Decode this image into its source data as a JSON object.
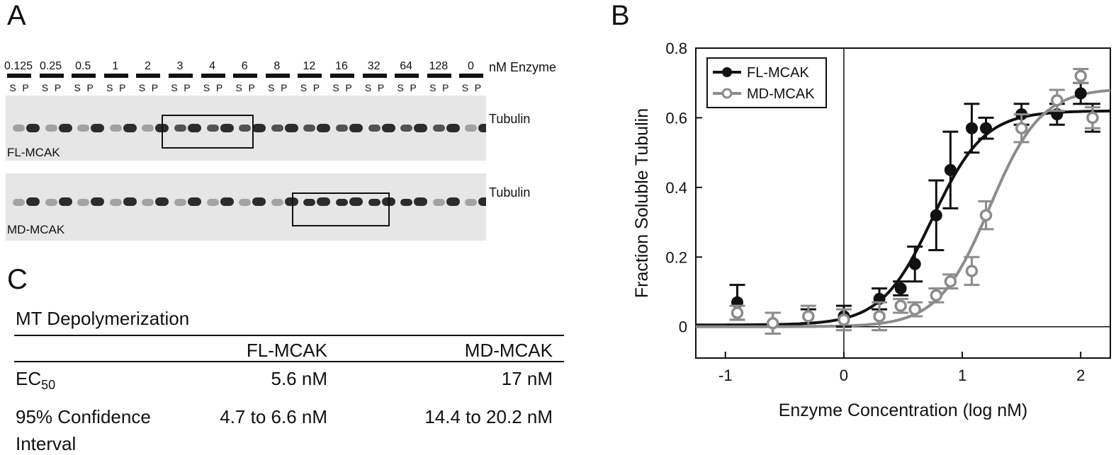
{
  "panels": {
    "a": "A",
    "b": "B",
    "c": "C"
  },
  "gel": {
    "concentrations": [
      "0.125",
      "0.25",
      "0.5",
      "1",
      "2",
      "3",
      "4",
      "6",
      "8",
      "12",
      "16",
      "32",
      "64",
      "128",
      "0"
    ],
    "unit_label": "nM Enzyme",
    "lane_s": "S",
    "lane_p": "P",
    "protein_label": "Tubulin",
    "top_gel_label": "FL-MCAK",
    "bottom_gel_label": "MD-MCAK"
  },
  "table": {
    "title": "MT Depolymerization",
    "headers": [
      "",
      "FL-MCAK",
      "MD-MCAK"
    ],
    "rows": [
      {
        "label_main": "EC",
        "label_sub": "50",
        "fl": "5.6  nM",
        "md": "17  nM"
      },
      {
        "label_line1": "95% Confidence",
        "label_line2": "Interval",
        "fl": "4.7 to 6.6 nM",
        "md": "14.4 to 20.2 nM"
      }
    ]
  },
  "chart_data": {
    "type": "scatter",
    "xlabel": "Enzyme Concentration (log nM)",
    "ylabel": "Fraction Soluble Tubulin",
    "xlim": [
      -1.25,
      2.25
    ],
    "ylim": [
      -0.09,
      0.8
    ],
    "xticks": [
      -1,
      0,
      1,
      2
    ],
    "yticks": [
      0,
      0.2,
      0.4,
      0.6,
      0.8
    ],
    "xtick_labels": [
      "-1",
      "0",
      "1",
      "2"
    ],
    "ytick_labels": [
      "0",
      "0.2",
      "0.4",
      "0.6",
      "0.8"
    ],
    "legend_position": "top-left",
    "reference_line_x": 0,
    "series": [
      {
        "name": "FL-MCAK",
        "color": "#111111",
        "marker": "filled",
        "x": [
          -0.9,
          -0.6,
          -0.3,
          0,
          0.3,
          0.48,
          0.6,
          0.78,
          0.9,
          1.08,
          1.2,
          1.5,
          1.8,
          2.0,
          2.1
        ],
        "y": [
          0.07,
          0.01,
          0.03,
          0.03,
          0.08,
          0.11,
          0.18,
          0.32,
          0.45,
          0.57,
          0.57,
          0.61,
          0.61,
          0.67,
          0.6
        ],
        "err": [
          0.05,
          0.03,
          0.02,
          0.03,
          0.03,
          0.02,
          0.05,
          0.1,
          0.11,
          0.07,
          0.03,
          0.03,
          0.03,
          0.03,
          0.04
        ],
        "fit": {
          "ec50_log": 0.75,
          "bottom": 0.005,
          "top": 0.62,
          "hill": 2.0
        }
      },
      {
        "name": "MD-MCAK",
        "color": "#8c8c8c",
        "marker": "open",
        "x": [
          -0.9,
          -0.6,
          -0.3,
          0,
          0.3,
          0.48,
          0.6,
          0.78,
          0.9,
          1.08,
          1.2,
          1.5,
          1.8,
          2.0,
          2.1
        ],
        "y": [
          0.04,
          0.01,
          0.03,
          0.02,
          0.03,
          0.06,
          0.05,
          0.09,
          0.13,
          0.16,
          0.32,
          0.57,
          0.65,
          0.72,
          0.6
        ],
        "err": [
          0.02,
          0.03,
          0.03,
          0.03,
          0.04,
          0.02,
          0.02,
          0.02,
          0.02,
          0.04,
          0.04,
          0.04,
          0.03,
          0.02,
          0.03
        ],
        "fit": {
          "ec50_log": 1.23,
          "bottom": 0.0,
          "top": 0.685,
          "hill": 2.0
        }
      }
    ]
  }
}
